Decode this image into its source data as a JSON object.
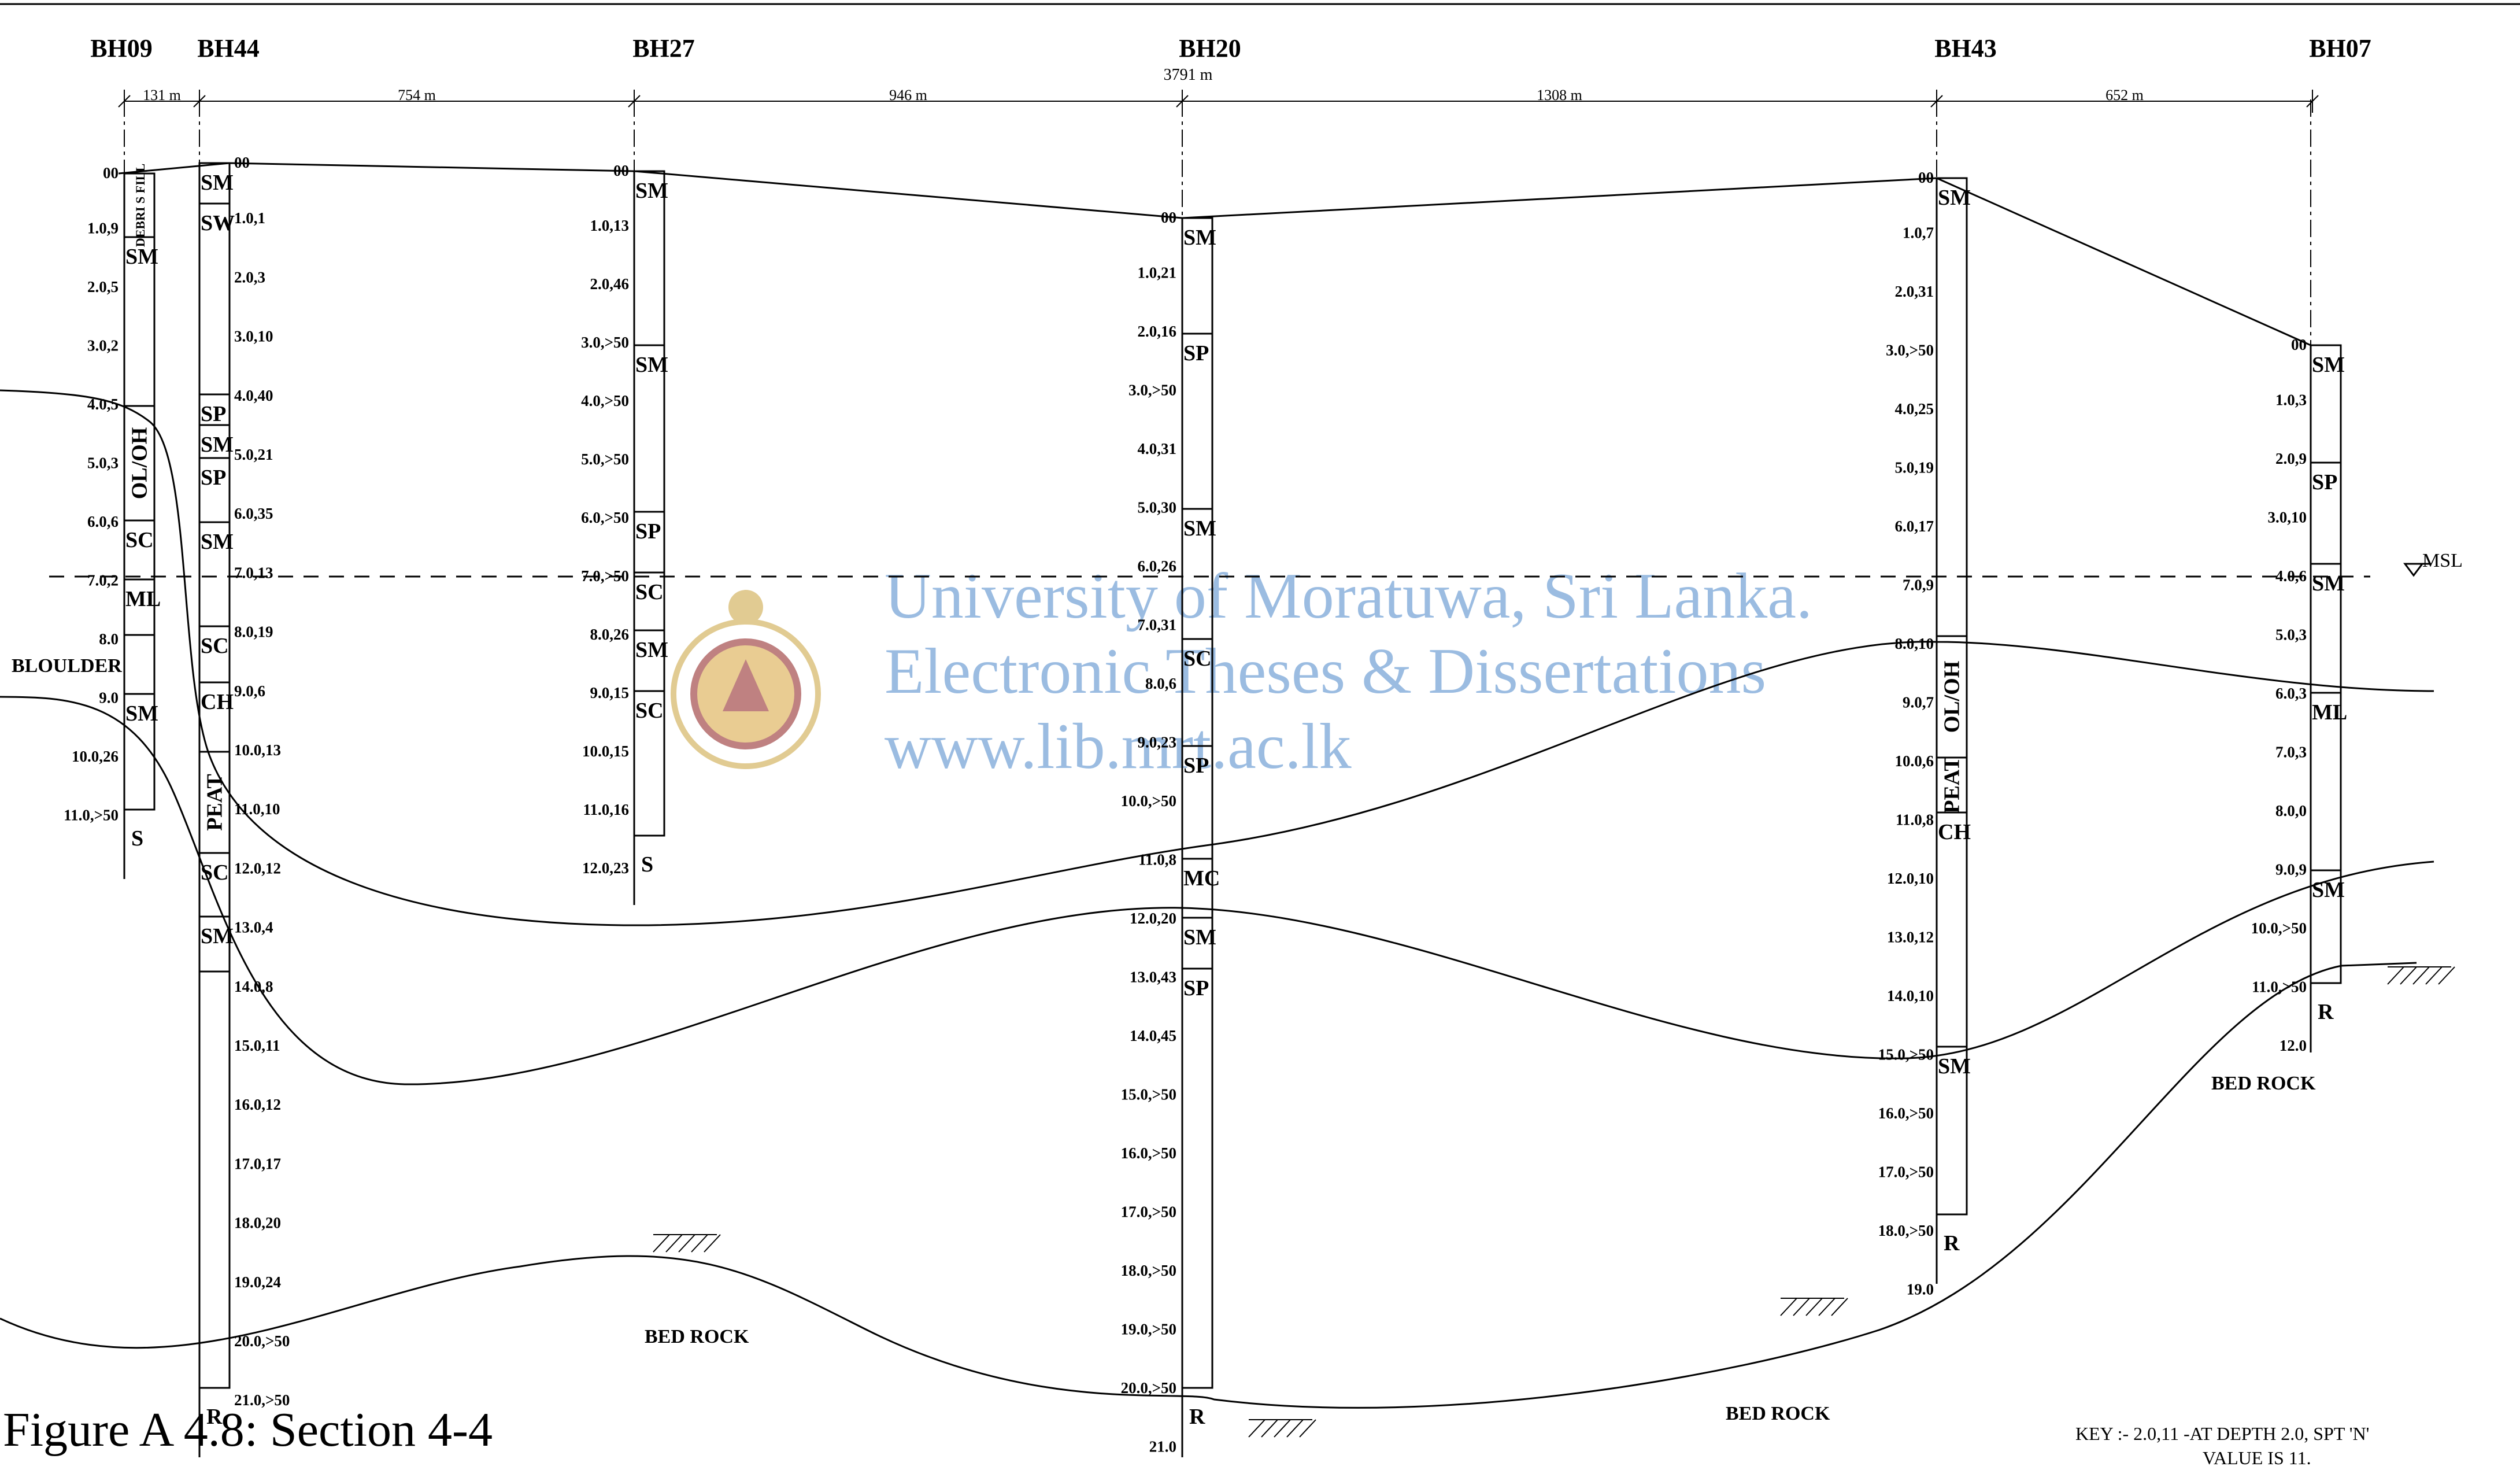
{
  "figure_caption": "Figure A 4.8: Section 4-4",
  "total_distance": "3791 m",
  "msl_label": "MSL",
  "boulder_label": "BLOULDER",
  "key_text": [
    "KEY :- 2.0,11 -AT DEPTH 2.0, SPT 'N'",
    "VALUE IS 11."
  ],
  "bed_rock_label": "BED ROCK",
  "watermark": {
    "lines": [
      "University of Moratuwa, Sri Lanka.",
      "Electronic Theses & Dissertations",
      "www.lib.mrt.ac.lk"
    ],
    "color": "#4a86c8"
  },
  "spacings": [
    "131 m",
    "754 m",
    "946 m",
    "1308 m",
    "652 m"
  ],
  "boreholes": [
    {
      "name": "BH09",
      "readings": [
        "00",
        "1.0,9",
        "2.0,5",
        "3.0,2",
        "4.0,5",
        "5.0,3",
        "6.0,6",
        "7.0,2",
        "8.0",
        "9.0",
        "10.0,26",
        "11.0,>50"
      ],
      "layers": [
        {
          "soil": "DEBRI S FILL"
        },
        {
          "soil": "SM"
        },
        {
          "soil": "OL/OH"
        },
        {
          "soil": "SC"
        },
        {
          "soil": "ML"
        },
        {
          "soil": ""
        },
        {
          "soil": "SM"
        },
        {
          "soil": "S"
        }
      ]
    },
    {
      "name": "BH44",
      "readings": [
        "00",
        "1.0,1",
        "2.0,3",
        "3.0,10",
        "4.0,40",
        "5.0,21",
        "6.0,35",
        "7.0,13",
        "8.0,19",
        "9.0,6",
        "10.0,13",
        "11.0,10",
        "12.0,12",
        "13.0,4",
        "14.0,8",
        "15.0,11",
        "16.0,12",
        "17.0,17",
        "18.0,20",
        "19.0,24",
        "20.0,>50",
        "21.0,>50"
      ],
      "layers": [
        {
          "soil": "SM"
        },
        {
          "soil": "SW"
        },
        {
          "soil": "SP"
        },
        {
          "soil": "SM"
        },
        {
          "soil": "SP"
        },
        {
          "soil": "SM"
        },
        {
          "soil": "SC"
        },
        {
          "soil": "CH"
        },
        {
          "soil": "PEAT"
        },
        {
          "soil": "SC"
        },
        {
          "soil": "SM"
        },
        {
          "soil": "R"
        }
      ]
    },
    {
      "name": "BH27",
      "readings": [
        "00",
        "1.0,13",
        "2.0,46",
        "3.0,>50",
        "4.0,>50",
        "5.0,>50",
        "6.0,>50",
        "7.0,>50",
        "8.0,26",
        "9.0,15",
        "10.0,15",
        "11.0,16",
        "12.0,23"
      ],
      "layers": [
        {
          "soil": "SM"
        },
        {
          "soil": "SM"
        },
        {
          "soil": "SP"
        },
        {
          "soil": "SC"
        },
        {
          "soil": "SM"
        },
        {
          "soil": "SC"
        },
        {
          "soil": "S"
        }
      ]
    },
    {
      "name": "BH20",
      "readings": [
        "00",
        "1.0,21",
        "2.0,16",
        "3.0,>50",
        "4.0,31",
        "5.0,30",
        "6.0,26",
        "7.0,31",
        "8.0,6",
        "9.0,23",
        "10.0,>50",
        "11.0,8",
        "12.0,20",
        "13.0,43",
        "14.0,45",
        "15.0,>50",
        "16.0,>50",
        "17.0,>50",
        "18.0,>50",
        "19.0,>50",
        "20.0,>50",
        "21.0"
      ],
      "layers": [
        {
          "soil": "SM"
        },
        {
          "soil": "SP"
        },
        {
          "soil": "SM"
        },
        {
          "soil": "SC"
        },
        {
          "soil": "SP"
        },
        {
          "soil": "MC"
        },
        {
          "soil": "SM"
        },
        {
          "soil": "SP"
        },
        {
          "soil": "R"
        }
      ]
    },
    {
      "name": "BH43",
      "readings": [
        "00",
        "1.0,7",
        "2.0,31",
        "3.0,>50",
        "4.0,25",
        "5.0,19",
        "6.0,17",
        "7.0,9",
        "8.0,10",
        "9.0,7",
        "10.0,6",
        "11.0,8",
        "12.0,10",
        "13.0,12",
        "14.0,10",
        "15.0,>50",
        "16.0,>50",
        "17.0,>50",
        "18.0,>50",
        "19.0"
      ],
      "layers": [
        {
          "soil": "SM"
        },
        {
          "soil": "OL/OH"
        },
        {
          "soil": "PEAT"
        },
        {
          "soil": "CH"
        },
        {
          "soil": "SM"
        },
        {
          "soil": "R"
        }
      ]
    },
    {
      "name": "BH07",
      "readings": [
        "00",
        "1.0,3",
        "2.0,9",
        "3.0,10",
        "4.0,6",
        "5.0,3",
        "6.0,3",
        "7.0,3",
        "8.0,0",
        "9.0,9",
        "10.0,>50",
        "11.0,>50",
        "12.0"
      ],
      "layers": [
        {
          "soil": "SM"
        },
        {
          "soil": "SP"
        },
        {
          "soil": "SM"
        },
        {
          "soil": "ML"
        },
        {
          "soil": "SM"
        },
        {
          "soil": "R"
        }
      ]
    }
  ]
}
